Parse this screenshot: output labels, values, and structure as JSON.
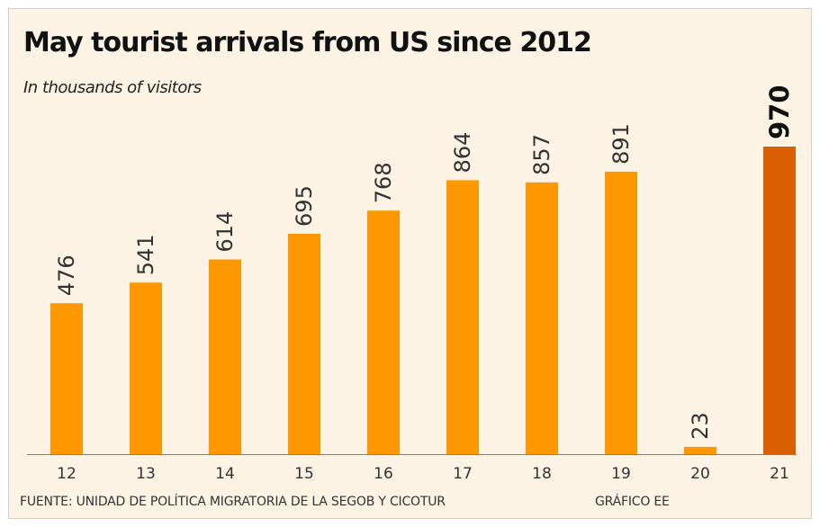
{
  "title": "May tourist arrivals from US since 2012",
  "subtitle": "In thousands of visitors",
  "source": "FUENTE: UNIDAD DE POLÍTICA MIGRATORIA DE LA SEGOB Y CICOTUR",
  "credit": "GRÁFICO EE",
  "colors": {
    "background": "#fdf3e4",
    "bar": "#fd9800",
    "highlight": "#d95f00",
    "axis": "#8a7f74"
  },
  "chart_data": {
    "type": "bar",
    "title": "May tourist arrivals from US since 2012",
    "subtitle": "In thousands of visitors",
    "xlabel": "",
    "ylabel": "",
    "categories": [
      "12",
      "13",
      "14",
      "15",
      "16",
      "17",
      "18",
      "19",
      "20",
      "21"
    ],
    "values": [
      476,
      541,
      614,
      695,
      768,
      864,
      857,
      891,
      23,
      970
    ],
    "value_labels": [
      "476",
      "541",
      "614",
      "695",
      "768",
      "864",
      "857",
      "891",
      "23",
      "970"
    ],
    "highlight_category": "21",
    "ylim": [
      0,
      1000
    ],
    "grid": false,
    "legend": "none"
  }
}
